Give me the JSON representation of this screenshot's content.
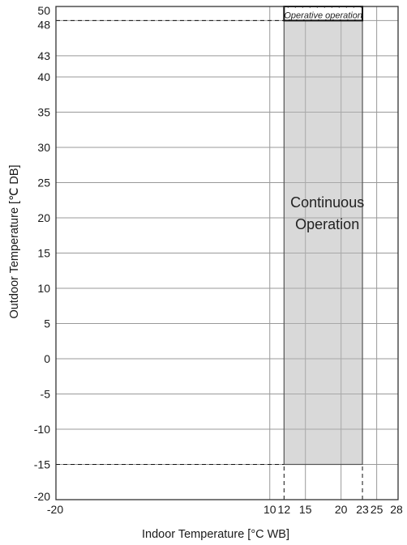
{
  "chart_data": {
    "type": "area",
    "title": "",
    "xlabel": "Indoor Temperature [°C WB]",
    "ylabel": "Outdoor Temperature [℃ DB]",
    "xlim": [
      -20,
      28
    ],
    "ylim": [
      -20,
      50
    ],
    "x_ticks": [
      {
        "value": -20,
        "label": "-20"
      },
      {
        "value": 10,
        "label": "10"
      },
      {
        "value": 12,
        "label": "12"
      },
      {
        "value": 15,
        "label": "15"
      },
      {
        "value": 20,
        "label": "20"
      },
      {
        "value": 23,
        "label": "23"
      },
      {
        "value": 25,
        "label": "25"
      },
      {
        "value": 28,
        "label": "28"
      }
    ],
    "y_ticks": [
      {
        "value": 50,
        "label": "50"
      },
      {
        "value": 48,
        "label": "48"
      },
      {
        "value": 43,
        "label": "43"
      },
      {
        "value": 40,
        "label": "40"
      },
      {
        "value": 35,
        "label": "35"
      },
      {
        "value": 30,
        "label": "30"
      },
      {
        "value": 25,
        "label": "25"
      },
      {
        "value": 20,
        "label": "20"
      },
      {
        "value": 15,
        "label": "15"
      },
      {
        "value": 10,
        "label": "10"
      },
      {
        "value": 5,
        "label": "5"
      },
      {
        "value": 0,
        "label": "0"
      },
      {
        "value": -5,
        "label": "-5"
      },
      {
        "value": -10,
        "label": "-10"
      },
      {
        "value": -15,
        "label": "-15"
      },
      {
        "value": -20,
        "label": "-20"
      }
    ],
    "regions": [
      {
        "label": "Continuous\nOperation",
        "x": [
          12,
          23
        ],
        "y": [
          -15,
          48
        ],
        "fill": "#d9d9d9",
        "style": "solid"
      },
      {
        "label": "Operative  operation",
        "x": [
          12,
          23
        ],
        "y": [
          48,
          50
        ],
        "fill": "#ffffff",
        "style": "hatched"
      }
    ],
    "reference_lines": [
      {
        "axis": "y",
        "value": 48,
        "from_x": -20,
        "to_x": 12,
        "style": "dashed"
      },
      {
        "axis": "y",
        "value": -15,
        "from_x": -20,
        "to_x": 12,
        "style": "dashed"
      },
      {
        "axis": "x",
        "value": 12,
        "from_y": -20,
        "to_y": -15,
        "style": "dashed"
      },
      {
        "axis": "x",
        "value": 23,
        "from_y": -20,
        "to_y": -15,
        "style": "dashed"
      }
    ],
    "grid": true,
    "colors": {
      "region_fill": "#d9d9d9",
      "grid": "#999999",
      "frame": "#333333"
    }
  }
}
